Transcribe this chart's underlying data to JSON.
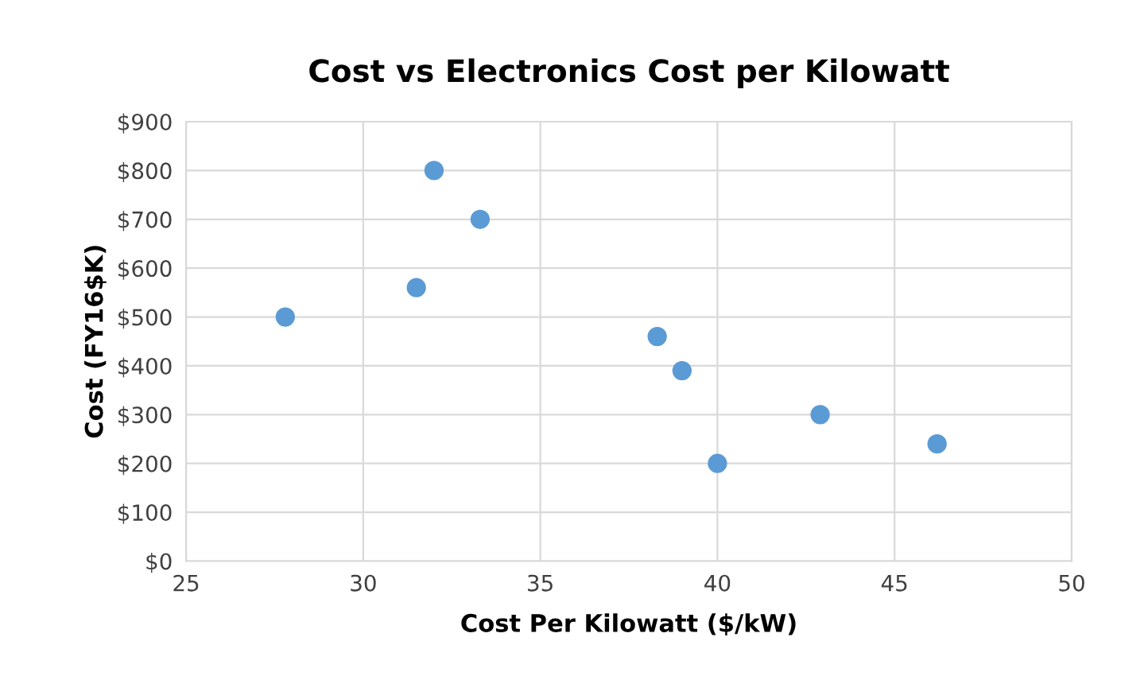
{
  "chart_data": {
    "type": "scatter",
    "title": "Cost vs Electronics Cost per Kilowatt",
    "xlabel": "Cost Per Kilowatt ($/kW)",
    "ylabel": "Cost (FY16$K)",
    "x": [
      27.8,
      32.0,
      33.3,
      31.5,
      38.3,
      39.0,
      40.0,
      42.9,
      46.2
    ],
    "series": [
      {
        "color": "#5b9bd5",
        "values": [
          500,
          800,
          700,
          560,
          460,
          390,
          200,
          300,
          240
        ]
      }
    ],
    "xlim": [
      25,
      50
    ],
    "xticks": [
      25,
      30,
      35,
      40,
      45,
      50
    ],
    "ylim": [
      0,
      900
    ],
    "yticks": [
      {
        "value": 0,
        "label": "$0"
      },
      {
        "value": 100,
        "label": "$100"
      },
      {
        "value": 200,
        "label": "$200"
      },
      {
        "value": 300,
        "label": "$300"
      },
      {
        "value": 400,
        "label": "$400"
      },
      {
        "value": 500,
        "label": "$500"
      },
      {
        "value": 600,
        "label": "$600"
      },
      {
        "value": 700,
        "label": "$700"
      },
      {
        "value": 800,
        "label": "$800"
      },
      {
        "value": 900,
        "label": "$900"
      }
    ],
    "grid": true,
    "marker": "circle"
  }
}
